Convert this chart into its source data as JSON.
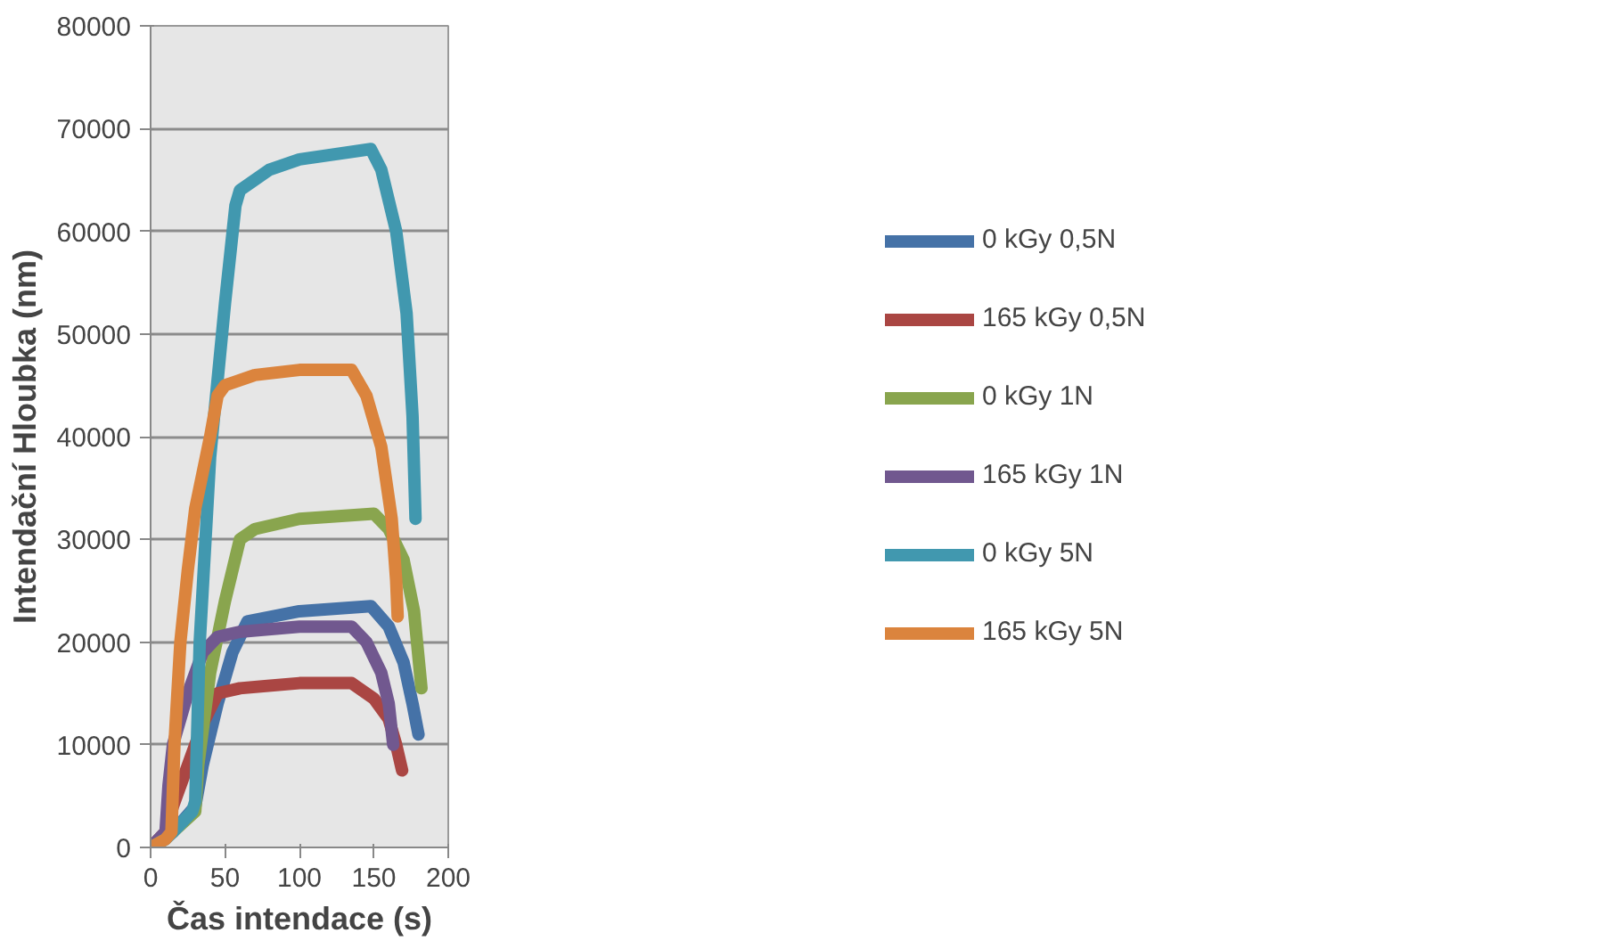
{
  "chart_data": {
    "type": "line",
    "xlabel": "Čas intendace (s)",
    "ylabel": "Intendační Hloubka (nm)",
    "xlim": [
      0,
      200
    ],
    "ylim": [
      0,
      80000
    ],
    "xticks": [
      0,
      50,
      100,
      150,
      200
    ],
    "yticks": [
      0,
      10000,
      20000,
      30000,
      40000,
      50000,
      60000,
      70000,
      80000
    ],
    "grid": "y",
    "legend": "right",
    "line_style": "solid",
    "marker": "none",
    "series": [
      {
        "name": "0 kGy 0,5N",
        "color": "#4572a7",
        "x": [
          0,
          15,
          30,
          35,
          45,
          55,
          65,
          100,
          148,
          160,
          170,
          176,
          180
        ],
        "values": [
          0,
          1500,
          4000,
          8000,
          14000,
          19000,
          22000,
          23000,
          23500,
          21500,
          18000,
          14000,
          11000
        ]
      },
      {
        "name": "165 kGy 0,5N",
        "color": "#aa4643",
        "x": [
          0,
          10,
          15,
          25,
          35,
          45,
          60,
          100,
          135,
          150,
          160,
          165,
          169
        ],
        "values": [
          0,
          1500,
          4000,
          8000,
          12000,
          15000,
          15500,
          16000,
          16000,
          14500,
          12500,
          10000,
          7500
        ]
      },
      {
        "name": "0 kGy 1N",
        "color": "#89a54e",
        "x": [
          0,
          15,
          30,
          32,
          40,
          50,
          60,
          70,
          100,
          150,
          160,
          170,
          177,
          182
        ],
        "values": [
          0,
          1500,
          3500,
          8000,
          17000,
          24000,
          30000,
          31000,
          32000,
          32500,
          31000,
          28000,
          23000,
          15500
        ]
      },
      {
        "name": "165 kGy 1N",
        "color": "#71588f",
        "x": [
          0,
          10,
          12,
          15,
          25,
          35,
          45,
          60,
          100,
          135,
          145,
          155,
          160,
          163
        ],
        "values": [
          0,
          1500,
          6000,
          10000,
          15000,
          19000,
          20500,
          21000,
          21500,
          21500,
          20000,
          17000,
          14000,
          10000
        ]
      },
      {
        "name": "0 kGy 5N",
        "color": "#4198af",
        "x": [
          0,
          10,
          15,
          28,
          30,
          33,
          40,
          50,
          57,
          60,
          80,
          100,
          148,
          155,
          165,
          172,
          176,
          178
        ],
        "values": [
          0,
          800,
          1500,
          3500,
          4500,
          20000,
          38000,
          53000,
          62500,
          64000,
          66000,
          67000,
          68000,
          66000,
          60000,
          52000,
          42000,
          32000
        ]
      },
      {
        "name": "165 kGy 5N",
        "color": "#db843d",
        "x": [
          0,
          10,
          14,
          16,
          20,
          25,
          30,
          40,
          45,
          50,
          70,
          100,
          135,
          145,
          155,
          162,
          165,
          166
        ],
        "values": [
          0,
          800,
          1500,
          10000,
          20000,
          27000,
          33000,
          40000,
          44000,
          45000,
          46000,
          46500,
          46500,
          44000,
          39000,
          32000,
          26000,
          22500
        ]
      }
    ]
  }
}
